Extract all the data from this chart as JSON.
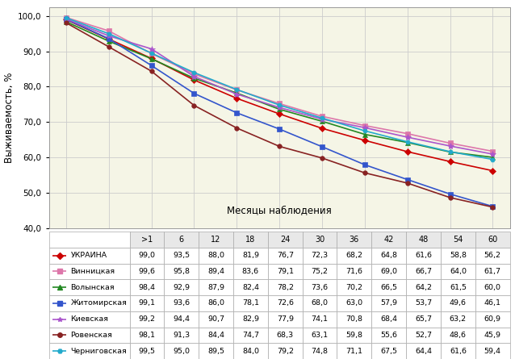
{
  "x_labels": [
    ">1",
    "6",
    "12",
    "18",
    "24",
    "30",
    "36",
    "42",
    "48",
    "54",
    "60"
  ],
  "x_values": [
    0,
    1,
    2,
    3,
    4,
    5,
    6,
    7,
    8,
    9,
    10
  ],
  "series": [
    {
      "name": "УКРАИНА",
      "values": [
        99.0,
        93.5,
        88.0,
        81.9,
        76.7,
        72.3,
        68.2,
        64.8,
        61.6,
        58.8,
        56.2
      ],
      "color": "#cc0000",
      "marker": "D",
      "markersize": 4,
      "linewidth": 1.2
    },
    {
      "name": "Винницкая",
      "values": [
        99.6,
        95.8,
        89.4,
        83.6,
        79.1,
        75.2,
        71.6,
        69.0,
        66.7,
        64.0,
        61.7
      ],
      "color": "#dd77aa",
      "marker": "s",
      "markersize": 4,
      "linewidth": 1.2
    },
    {
      "name": "Волынская",
      "values": [
        98.4,
        92.9,
        87.9,
        82.4,
        78.2,
        73.6,
        70.2,
        66.5,
        64.2,
        61.5,
        60.0
      ],
      "color": "#228822",
      "marker": "^",
      "markersize": 4,
      "linewidth": 1.2
    },
    {
      "name": "Житомирская",
      "values": [
        99.1,
        93.6,
        86.0,
        78.1,
        72.6,
        68.0,
        63.0,
        57.9,
        53.7,
        49.6,
        46.1
      ],
      "color": "#3355cc",
      "marker": "s",
      "markersize": 4,
      "linewidth": 1.2
    },
    {
      "name": "Киевская",
      "values": [
        99.2,
        94.4,
        90.7,
        82.9,
        77.9,
        74.1,
        70.8,
        68.4,
        65.7,
        63.2,
        60.9
      ],
      "color": "#aa55cc",
      "marker": "*",
      "markersize": 6,
      "linewidth": 1.2
    },
    {
      "name": "Ровенская",
      "values": [
        98.1,
        91.3,
        84.4,
        74.7,
        68.3,
        63.1,
        59.8,
        55.6,
        52.7,
        48.6,
        45.9
      ],
      "color": "#882222",
      "marker": "o",
      "markersize": 4,
      "linewidth": 1.2
    },
    {
      "name": "Черниговская",
      "values": [
        99.5,
        95.0,
        89.5,
        84.0,
        79.2,
        74.8,
        71.1,
        67.5,
        64.4,
        61.6,
        59.4
      ],
      "color": "#22aacc",
      "marker": "H",
      "markersize": 4,
      "linewidth": 1.2
    }
  ],
  "ylabel": "Выживаемость, %",
  "xlabel": "Месяцы наблюдения",
  "ylim": [
    40.0,
    102.5
  ],
  "yticks": [
    40.0,
    50.0,
    60.0,
    70.0,
    80.0,
    90.0,
    100.0
  ],
  "ytick_labels": [
    "40,0",
    "50,0",
    "60,0",
    "70,0",
    "80,0",
    "90,0",
    "100,0"
  ],
  "plot_bg": "#f5f5e6",
  "fig_bg": "#ffffff",
  "grid_color": "#cccccc",
  "border_color": "#aaaaaa",
  "table_header_bg": "#e8e8e8",
  "table_row_bg": "#ffffff",
  "table_alt_bg": "#f5f5f5"
}
